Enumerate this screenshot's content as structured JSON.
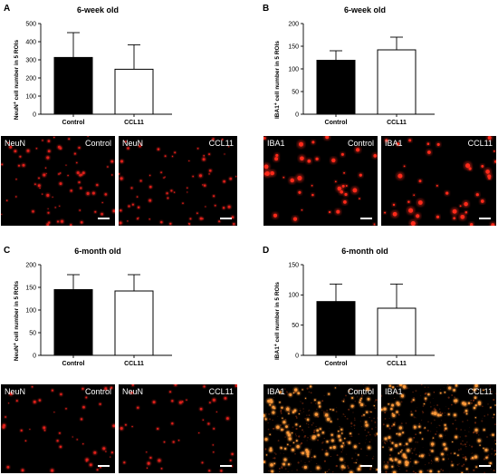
{
  "panels": [
    {
      "letter": "A",
      "title": "6-week old",
      "ylabel_pre": "NeuN",
      "ylabel_sup": "+",
      "ylabel_post": " cell number in 5 ROIs",
      "micrographs": [
        {
          "marker": "NeuN",
          "condition": "Control"
        },
        {
          "marker": "NeuN",
          "condition": "CCL11"
        }
      ]
    },
    {
      "letter": "B",
      "title": "6-week old",
      "ylabel_pre": "IBA1",
      "ylabel_sup": "+",
      "ylabel_post": " cell number in 5 ROIs",
      "micrographs": [
        {
          "marker": "IBA1",
          "condition": "Control"
        },
        {
          "marker": "IBA1",
          "condition": "CCL11"
        }
      ]
    },
    {
      "letter": "C",
      "title": "6-month old",
      "ylabel_pre": "NeuN",
      "ylabel_sup": "+",
      "ylabel_post": " cell number in 5 ROIs",
      "micrographs": [
        {
          "marker": "NeuN",
          "condition": "Control"
        },
        {
          "marker": "NeuN",
          "condition": "CCL11"
        }
      ]
    },
    {
      "letter": "D",
      "title": "6-month old",
      "ylabel_pre": "IBA1",
      "ylabel_sup": "+",
      "ylabel_post": " cell number in 5 ROIs",
      "micrographs": [
        {
          "marker": "IBA1",
          "condition": "Control"
        },
        {
          "marker": "IBA1",
          "condition": "CCL11"
        }
      ]
    }
  ],
  "chart_data": [
    {
      "type": "bar",
      "title": "6-week old",
      "ylabel": "NeuN+ cell number in 5 ROIs",
      "categories": [
        "Control",
        "CCL11"
      ],
      "values": [
        313,
        248
      ],
      "error_upper": [
        450,
        383
      ],
      "ylim": [
        0,
        500
      ],
      "yticks": [
        0,
        100,
        200,
        300,
        400,
        500
      ],
      "bar_fill": [
        "#000000",
        "#ffffff"
      ]
    },
    {
      "type": "bar",
      "title": "6-week old",
      "ylabel": "IBA1+ cell number in 5 ROIs",
      "categories": [
        "Control",
        "CCL11"
      ],
      "values": [
        119,
        142
      ],
      "error_upper": [
        140,
        170
      ],
      "ylim": [
        0,
        200
      ],
      "yticks": [
        0,
        50,
        100,
        150,
        200
      ],
      "bar_fill": [
        "#000000",
        "#ffffff"
      ]
    },
    {
      "type": "bar",
      "title": "6-month old",
      "ylabel": "NeuN+ cell number in 5 ROIs",
      "categories": [
        "Control",
        "CCL11"
      ],
      "values": [
        145,
        142
      ],
      "error_upper": [
        178,
        178
      ],
      "ylim": [
        0,
        200
      ],
      "yticks": [
        0,
        50,
        100,
        150,
        200
      ],
      "bar_fill": [
        "#000000",
        "#ffffff"
      ]
    },
    {
      "type": "bar",
      "title": "6-month old",
      "ylabel": "IBA1+ cell number in 5 ROIs",
      "categories": [
        "Control",
        "CCL11"
      ],
      "values": [
        89,
        78
      ],
      "error_upper": [
        118,
        118
      ],
      "ylim": [
        0,
        150
      ],
      "yticks": [
        0,
        50,
        100,
        150
      ],
      "bar_fill": [
        "#000000",
        "#ffffff"
      ]
    }
  ],
  "colors": {
    "neun_signal": "#e0201a",
    "iba1_signal": "#ff2a1a",
    "iba1_old_signal": "#ff9a3a",
    "micrograph_bg": "#000000"
  }
}
